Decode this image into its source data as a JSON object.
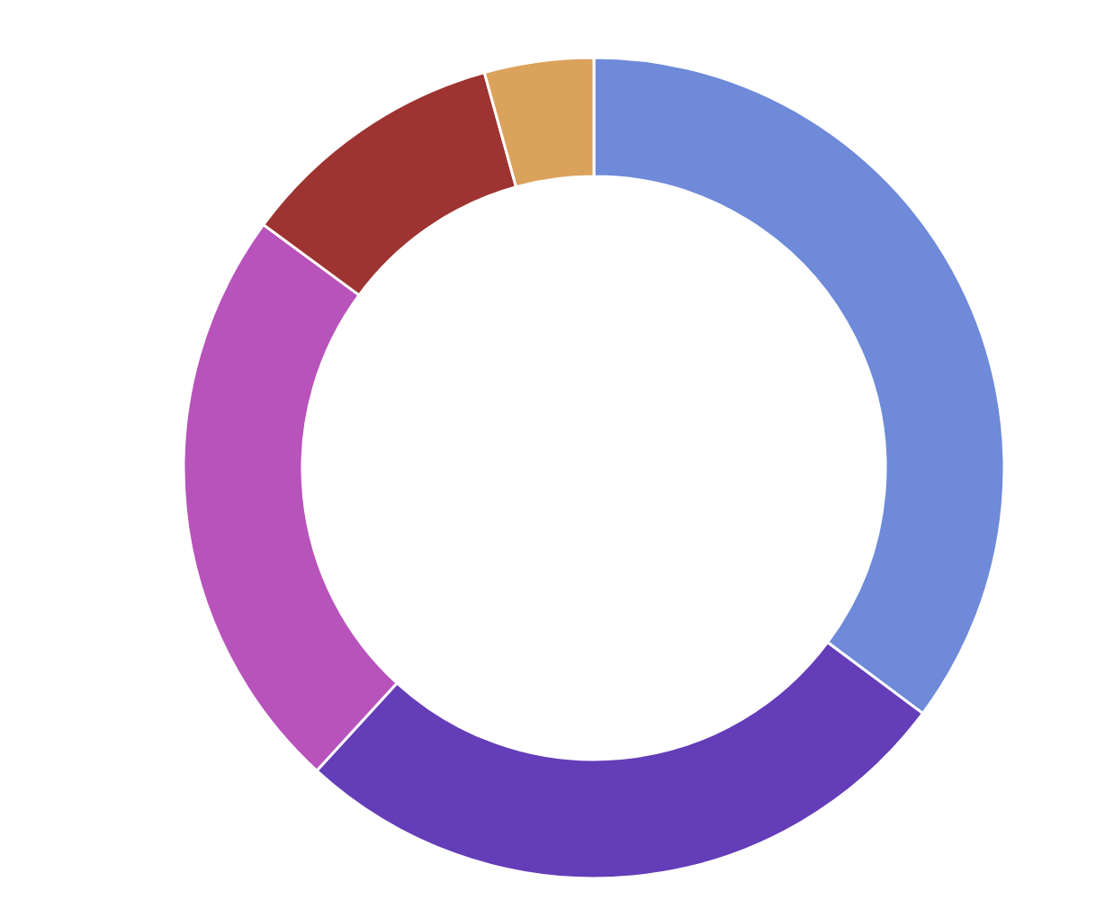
{
  "chart_data": {
    "type": "donut",
    "categories": [
      null,
      null,
      null,
      null,
      null
    ],
    "values": [
      35.2,
      26.6,
      23.3,
      10.6,
      4.3
    ],
    "colors": [
      "#6e8ad9",
      "#643db8",
      "#b853bb",
      "#9e3431",
      "#dba25c"
    ]
  }
}
